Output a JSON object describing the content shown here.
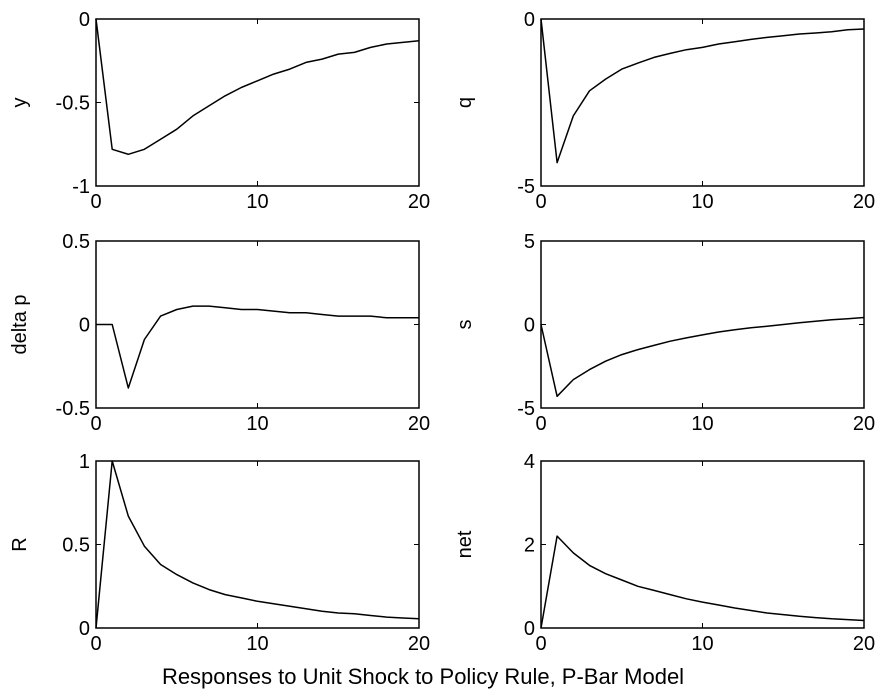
{
  "figure": {
    "caption": "Responses to Unit Shock to Policy Rule, P-Bar Model"
  },
  "chart_data": [
    {
      "type": "line",
      "ylabel": "y",
      "xlim": [
        0,
        20
      ],
      "ylim": [
        -1,
        0
      ],
      "xticks": [
        "0",
        "10",
        "20"
      ],
      "xtick_values": [
        0,
        10,
        20
      ],
      "yticks": [
        "0",
        "-0.5",
        "-1"
      ],
      "ytick_values": [
        0,
        -0.5,
        -1
      ],
      "x": [
        0,
        1,
        2,
        3,
        4,
        5,
        6,
        7,
        8,
        9,
        10,
        11,
        12,
        13,
        14,
        15,
        16,
        17,
        18,
        19,
        20
      ],
      "values": [
        0,
        -0.78,
        -0.81,
        -0.78,
        -0.72,
        -0.66,
        -0.58,
        -0.52,
        -0.46,
        -0.41,
        -0.37,
        -0.33,
        -0.3,
        -0.26,
        -0.24,
        -0.21,
        -0.2,
        -0.17,
        -0.15,
        -0.14,
        -0.13
      ]
    },
    {
      "type": "line",
      "ylabel": "q",
      "xlim": [
        0,
        20
      ],
      "ylim": [
        -5,
        0
      ],
      "xticks": [
        "0",
        "10",
        "20"
      ],
      "xtick_values": [
        0,
        10,
        20
      ],
      "yticks": [
        "0",
        "-5"
      ],
      "ytick_values": [
        0,
        -5
      ],
      "x": [
        0,
        1,
        2,
        3,
        4,
        5,
        6,
        7,
        8,
        9,
        10,
        11,
        12,
        13,
        14,
        15,
        16,
        17,
        18,
        19,
        20
      ],
      "values": [
        0,
        -4.3,
        -2.9,
        -2.15,
        -1.8,
        -1.5,
        -1.32,
        -1.15,
        -1.03,
        -0.92,
        -0.85,
        -0.75,
        -0.68,
        -0.61,
        -0.55,
        -0.5,
        -0.45,
        -0.42,
        -0.38,
        -0.32,
        -0.3
      ]
    },
    {
      "type": "line",
      "ylabel": "delta p",
      "xlim": [
        0,
        20
      ],
      "ylim": [
        -0.5,
        0.5
      ],
      "xticks": [
        "0",
        "10",
        "20"
      ],
      "xtick_values": [
        0,
        10,
        20
      ],
      "yticks": [
        "0.5",
        "0",
        "-0.5"
      ],
      "ytick_values": [
        0.5,
        0,
        -0.5
      ],
      "x": [
        0,
        1,
        2,
        3,
        4,
        5,
        6,
        7,
        8,
        9,
        10,
        11,
        12,
        13,
        14,
        15,
        16,
        17,
        18,
        19,
        20
      ],
      "values": [
        0,
        0,
        -0.38,
        -0.09,
        0.05,
        0.09,
        0.11,
        0.11,
        0.1,
        0.09,
        0.09,
        0.08,
        0.07,
        0.07,
        0.06,
        0.05,
        0.05,
        0.05,
        0.04,
        0.04,
        0.04
      ]
    },
    {
      "type": "line",
      "ylabel": "s",
      "xlim": [
        0,
        20
      ],
      "ylim": [
        -5,
        5
      ],
      "xticks": [
        "0",
        "10",
        "20"
      ],
      "xtick_values": [
        0,
        10,
        20
      ],
      "yticks": [
        "5",
        "0",
        "-5"
      ],
      "ytick_values": [
        5,
        0,
        -5
      ],
      "x": [
        0,
        1,
        2,
        3,
        4,
        5,
        6,
        7,
        8,
        9,
        10,
        11,
        12,
        13,
        14,
        15,
        16,
        17,
        18,
        19,
        20
      ],
      "values": [
        0,
        -4.3,
        -3.3,
        -2.7,
        -2.2,
        -1.8,
        -1.5,
        -1.25,
        -1.0,
        -0.8,
        -0.62,
        -0.45,
        -0.32,
        -0.2,
        -0.1,
        0.0,
        0.1,
        0.2,
        0.28,
        0.35,
        0.42
      ]
    },
    {
      "type": "line",
      "ylabel": "R",
      "xlim": [
        0,
        20
      ],
      "ylim": [
        0,
        1
      ],
      "xticks": [
        "0",
        "10",
        "20"
      ],
      "xtick_values": [
        0,
        10,
        20
      ],
      "yticks": [
        "1",
        "0.5",
        "0"
      ],
      "ytick_values": [
        1,
        0.5,
        0
      ],
      "x": [
        0,
        1,
        2,
        3,
        4,
        5,
        6,
        7,
        8,
        9,
        10,
        11,
        12,
        13,
        14,
        15,
        16,
        17,
        18,
        19,
        20
      ],
      "values": [
        0,
        1.0,
        0.67,
        0.49,
        0.38,
        0.32,
        0.27,
        0.23,
        0.2,
        0.18,
        0.16,
        0.145,
        0.13,
        0.115,
        0.1,
        0.09,
        0.085,
        0.075,
        0.065,
        0.06,
        0.055
      ]
    },
    {
      "type": "line",
      "ylabel": "net",
      "xlim": [
        0,
        20
      ],
      "ylim": [
        0,
        4
      ],
      "xticks": [
        "0",
        "10",
        "20"
      ],
      "xtick_values": [
        0,
        10,
        20
      ],
      "yticks": [
        "4",
        "2",
        "0"
      ],
      "ytick_values": [
        4,
        2,
        0
      ],
      "x": [
        0,
        1,
        2,
        3,
        4,
        5,
        6,
        7,
        8,
        9,
        10,
        11,
        12,
        13,
        14,
        15,
        16,
        17,
        18,
        19,
        20
      ],
      "values": [
        0,
        2.2,
        1.8,
        1.5,
        1.3,
        1.15,
        1.0,
        0.9,
        0.8,
        0.7,
        0.62,
        0.55,
        0.48,
        0.42,
        0.36,
        0.32,
        0.28,
        0.25,
        0.22,
        0.2,
        0.18
      ]
    }
  ]
}
